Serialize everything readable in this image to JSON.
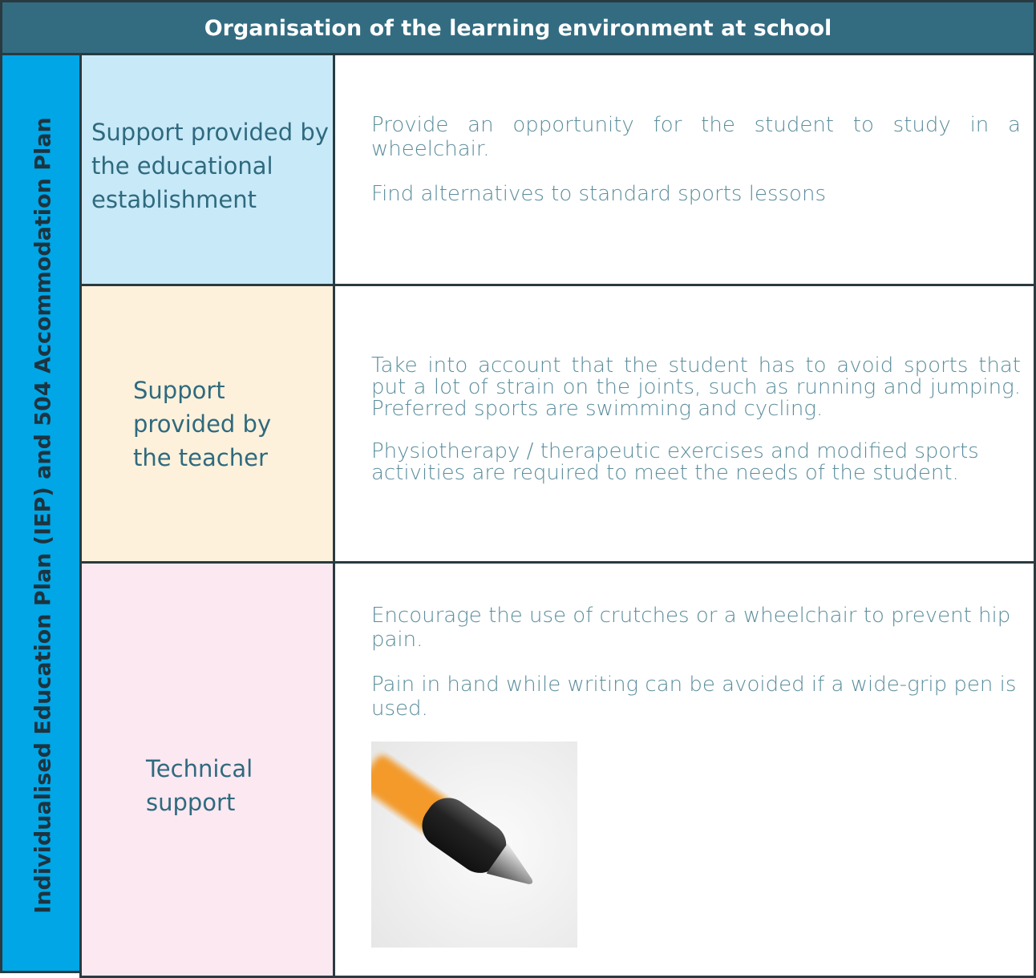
{
  "header": {
    "title": "Organisation of the learning environment at school"
  },
  "side_label": "Individualised Education Plan (IEP) and 504 Accommodation Plan",
  "rows": [
    {
      "label": "Support provided by the educational establishment",
      "paragraphs": [
        "Provide an opportunity for the student to study in a wheelchair.",
        "Find alternatives to standard sports lessons"
      ]
    },
    {
      "label": "Support provided by the teacher",
      "paragraphs": [
        "Take into account that the student has to avoid sports that put a lot of strain on the joints, such as running and jumping. Preferred sports are swimming and cycling.",
        "Physiotherapy / therapeutic exercises and modified sports activities are required to meet the needs of the student."
      ]
    },
    {
      "label": "Technical support",
      "paragraphs": [
        "Encourage the use of crutches or a wheelchair to prevent hip pain.",
        "Pain in hand while writing can be avoided if a wide-grip pen is used."
      ]
    }
  ]
}
